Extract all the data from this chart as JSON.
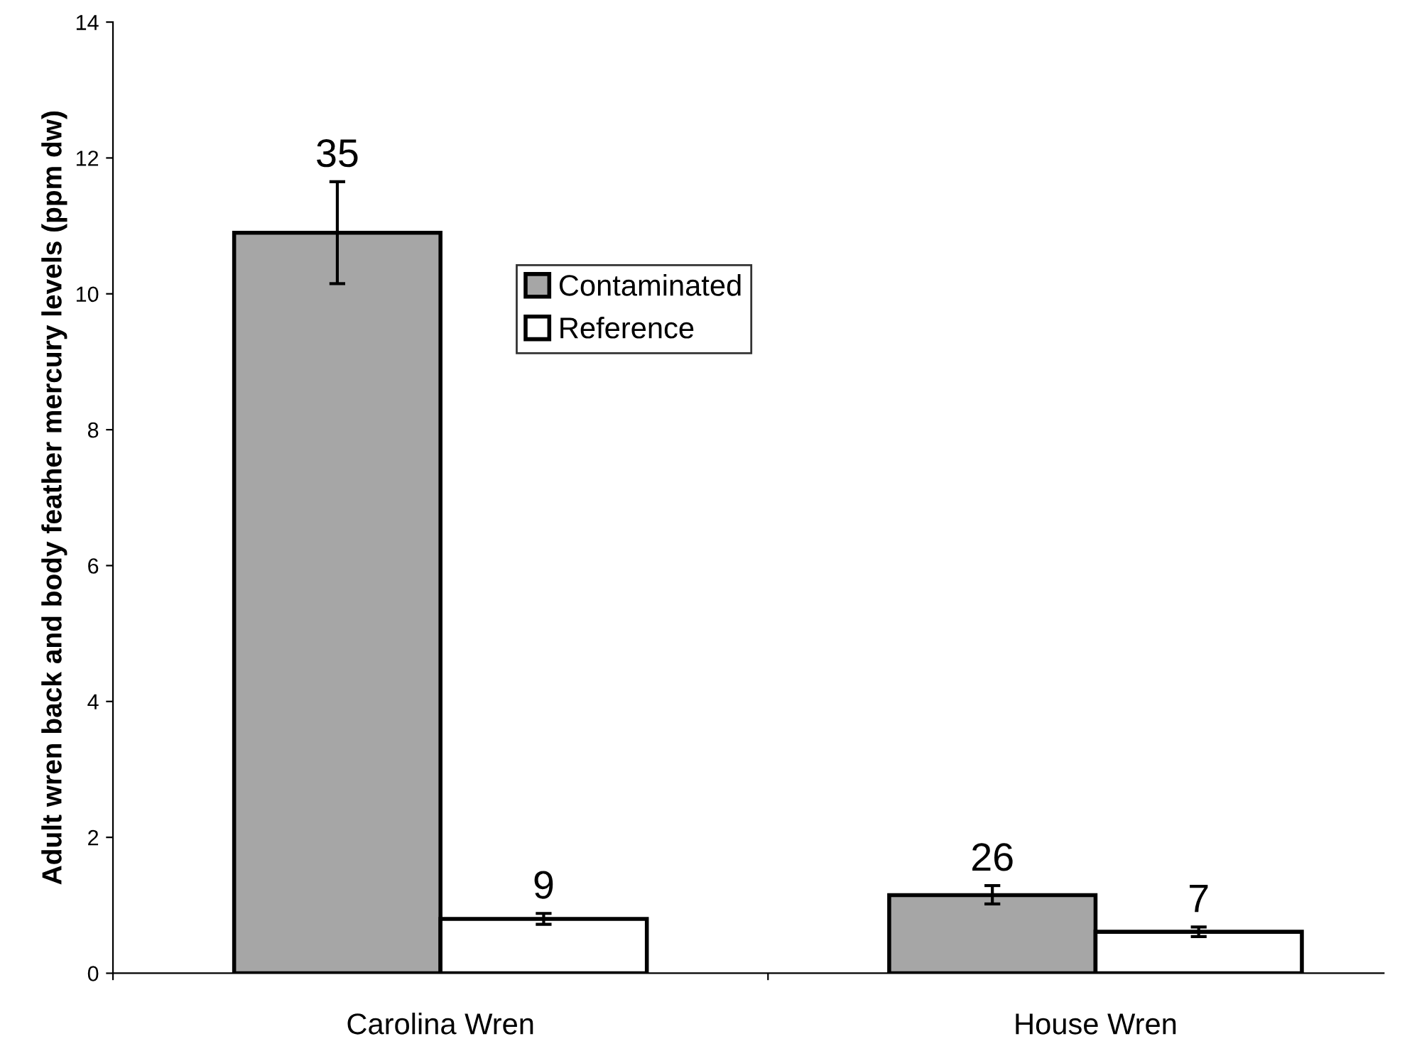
{
  "chart_data": {
    "type": "bar",
    "ylabel": "Adult wren back and body feather mercury levels (ppm dw)",
    "categories": [
      "Carolina Wren",
      "House Wren"
    ],
    "series": [
      {
        "name": "Contaminated",
        "color": "#a6a6a6",
        "values": [
          10.9,
          1.15
        ],
        "errors": [
          [
            10.15,
            11.65
          ],
          [
            1.02,
            1.29
          ]
        ]
      },
      {
        "name": "Reference",
        "color": "#ffffff",
        "values": [
          0.8,
          0.61
        ],
        "errors": [
          [
            0.72,
            0.88
          ],
          [
            0.54,
            0.68
          ]
        ]
      }
    ],
    "annotations": [
      "35",
      "9",
      "26",
      "7"
    ],
    "ylim": [
      0,
      14
    ],
    "yticks": [
      0,
      2,
      4,
      6,
      8,
      10,
      12,
      14
    ],
    "grid": false,
    "legend": "top center"
  }
}
